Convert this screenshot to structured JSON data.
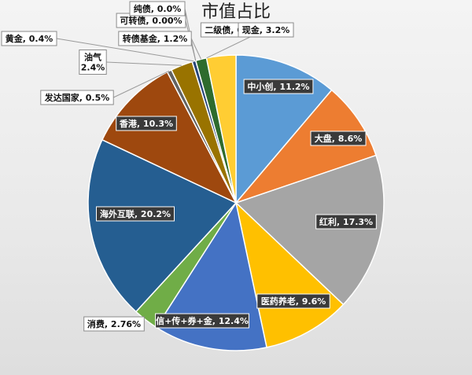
{
  "chart_data": {
    "type": "pie",
    "title": "市值占比",
    "slices": [
      {
        "label": "中小创, 11.2%",
        "value": 11.2,
        "color": "#5b9bd5"
      },
      {
        "label": "大盘, 8.6%",
        "value": 8.6,
        "color": "#ed7d31"
      },
      {
        "label": "红利, 17.3%",
        "value": 17.3,
        "color": "#a5a5a5"
      },
      {
        "label": "医药养老, 9.6%",
        "value": 9.6,
        "color": "#ffc000"
      },
      {
        "label": "信+传+券+金, 12.4%",
        "value": 12.4,
        "color": "#4472c4"
      },
      {
        "label": "消费, 2.76%",
        "value": 2.76,
        "color": "#70ad47"
      },
      {
        "label": "海外互联, 20.2%",
        "value": 20.2,
        "color": "#255e91"
      },
      {
        "label": "香港, 10.3%",
        "value": 10.3,
        "color": "#9e480e"
      },
      {
        "label": "发达国家, 0.5%",
        "value": 0.5,
        "color": "#636363"
      },
      {
        "label": "油气\n2.4%",
        "value": 2.4,
        "color": "#997300"
      },
      {
        "label": "黄金, 0.4%",
        "value": 0.4,
        "color": "#264478"
      },
      {
        "label": "可转债, 0.00%",
        "value": 0.0,
        "color": "#43682b"
      },
      {
        "label": "纯债, 0.0%",
        "value": 0.0,
        "color": "#7cafdd"
      },
      {
        "label": "转债基金, 1.2%",
        "value": 1.2,
        "color": "#2e6b2e"
      },
      {
        "label": "二级债, 0.0%",
        "value": 0.0,
        "color": "#6f6f6f"
      },
      {
        "label": "现金, 3.2%",
        "value": 3.2,
        "color": "#ffcd33"
      }
    ]
  }
}
